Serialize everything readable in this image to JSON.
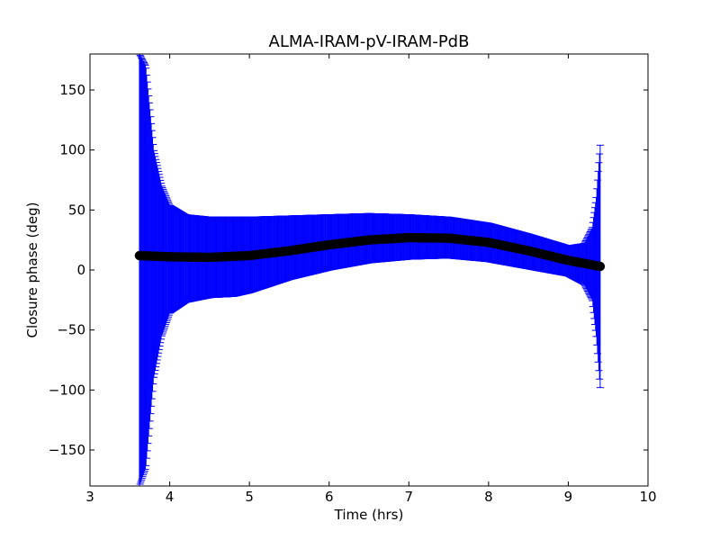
{
  "chart_data": {
    "type": "scatter",
    "title": "ALMA-IRAM-pV-IRAM-PdB",
    "xlabel": "Time (hrs)",
    "ylabel": "Closure phase (deg)",
    "xlim": [
      3,
      10
    ],
    "ylim": [
      -180,
      180
    ],
    "x_ticks": [
      3,
      4,
      5,
      6,
      7,
      8,
      9,
      10
    ],
    "x_tick_labels": [
      "3",
      "4",
      "5",
      "6",
      "7",
      "8",
      "9",
      "10"
    ],
    "y_ticks": [
      150,
      100,
      50,
      0,
      -50,
      -100,
      -150
    ],
    "y_tick_labels": [
      "150",
      "100",
      "50",
      "0",
      "−50",
      "−100",
      "−150"
    ],
    "grid": false,
    "series": [
      {
        "marker_color": "#000000",
        "errorbar_color": "#0000ff",
        "t_start": 3.62,
        "t_end": 9.4,
        "closure_phase": [
          {
            "t": 3.62,
            "y": 12
          },
          {
            "t": 4.0,
            "y": 11
          },
          {
            "t": 4.5,
            "y": 10.5
          },
          {
            "t": 5.0,
            "y": 12
          },
          {
            "t": 5.5,
            "y": 16
          },
          {
            "t": 6.0,
            "y": 21
          },
          {
            "t": 6.5,
            "y": 25
          },
          {
            "t": 7.0,
            "y": 27
          },
          {
            "t": 7.5,
            "y": 26.5
          },
          {
            "t": 8.0,
            "y": 23
          },
          {
            "t": 8.5,
            "y": 16
          },
          {
            "t": 9.0,
            "y": 8
          },
          {
            "t": 9.4,
            "y": 3
          }
        ],
        "upper_envelope": [
          {
            "t": 3.62,
            "y": 180
          },
          {
            "t": 3.7,
            "y": 170
          },
          {
            "t": 3.8,
            "y": 100
          },
          {
            "t": 3.9,
            "y": 70
          },
          {
            "t": 4.0,
            "y": 54
          },
          {
            "t": 4.2,
            "y": 46
          },
          {
            "t": 4.5,
            "y": 44
          },
          {
            "t": 5.0,
            "y": 44
          },
          {
            "t": 5.5,
            "y": 45
          },
          {
            "t": 6.0,
            "y": 46
          },
          {
            "t": 6.5,
            "y": 47
          },
          {
            "t": 7.0,
            "y": 46
          },
          {
            "t": 7.5,
            "y": 44
          },
          {
            "t": 8.0,
            "y": 39
          },
          {
            "t": 8.5,
            "y": 30
          },
          {
            "t": 9.0,
            "y": 20
          },
          {
            "t": 9.2,
            "y": 22
          },
          {
            "t": 9.3,
            "y": 35
          },
          {
            "t": 9.35,
            "y": 60
          },
          {
            "t": 9.4,
            "y": 104
          }
        ],
        "lower_envelope": [
          {
            "t": 3.62,
            "y": -180
          },
          {
            "t": 3.7,
            "y": -165
          },
          {
            "t": 3.8,
            "y": -90
          },
          {
            "t": 3.9,
            "y": -55
          },
          {
            "t": 4.0,
            "y": -36
          },
          {
            "t": 4.2,
            "y": -27
          },
          {
            "t": 4.5,
            "y": -23
          },
          {
            "t": 4.8,
            "y": -22
          },
          {
            "t": 5.0,
            "y": -19
          },
          {
            "t": 5.5,
            "y": -8
          },
          {
            "t": 6.0,
            "y": 0
          },
          {
            "t": 6.5,
            "y": 6
          },
          {
            "t": 7.0,
            "y": 9
          },
          {
            "t": 7.5,
            "y": 10
          },
          {
            "t": 8.0,
            "y": 7
          },
          {
            "t": 8.5,
            "y": 1
          },
          {
            "t": 9.0,
            "y": -5
          },
          {
            "t": 9.2,
            "y": -12
          },
          {
            "t": 9.3,
            "y": -25
          },
          {
            "t": 9.35,
            "y": -55
          },
          {
            "t": 9.4,
            "y": -98
          }
        ]
      }
    ]
  }
}
